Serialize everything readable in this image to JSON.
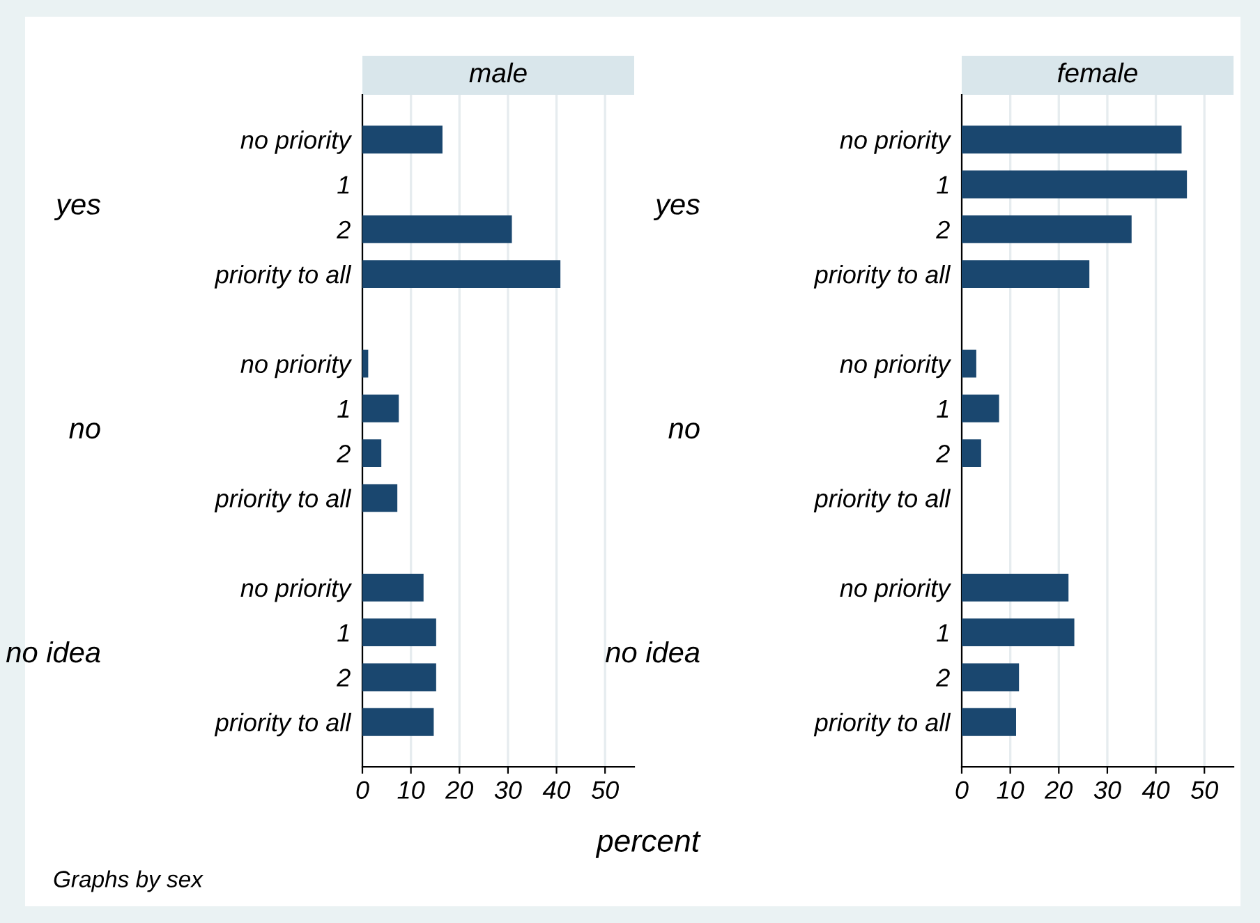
{
  "chart_data": [
    {
      "type": "bar",
      "orientation": "horizontal",
      "title": "male",
      "xlabel": "percent",
      "categories": [
        "no priority",
        "1",
        "2",
        "priority to all",
        null,
        "no priority",
        "1",
        "2",
        "priority to all",
        null,
        "no priority",
        "1",
        "2",
        "priority to all"
      ],
      "values": [
        16.5,
        0,
        30.8,
        40.8,
        null,
        1.2,
        7.5,
        3.9,
        7.2,
        null,
        12.6,
        15.2,
        15.2,
        14.7
      ],
      "color": "#1a476f",
      "xlim": [
        0,
        56
      ],
      "xticks": [
        0,
        10,
        20,
        30,
        40,
        50
      ],
      "grid": "x",
      "annotations": [
        "yes",
        "no",
        "no idea",
        "Graphs by sex"
      ]
    },
    {
      "type": "bar",
      "orientation": "horizontal",
      "title": "female",
      "categories": [
        "no priority",
        "1",
        "2",
        "priority to all",
        null,
        "no priority",
        "1",
        "2",
        "priority to all",
        null,
        "no priority",
        "1",
        "2",
        "priority to all"
      ],
      "values": [
        45.3,
        46.4,
        35.0,
        26.3,
        null,
        3.0,
        7.7,
        4.0,
        0,
        null,
        22.0,
        23.2,
        11.8,
        11.2
      ],
      "color": "#1a476f",
      "xlim": [
        0,
        56
      ],
      "xticks": [
        0,
        10,
        20,
        30,
        40,
        50
      ],
      "grid": "x",
      "annotations": [
        "yes",
        "no",
        "no idea"
      ]
    }
  ]
}
